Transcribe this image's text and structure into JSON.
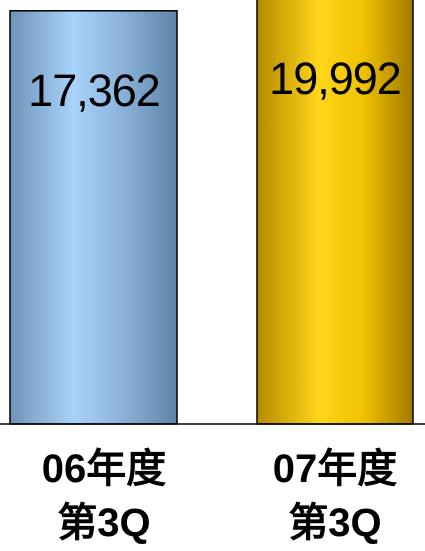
{
  "chart_data": {
    "type": "bar",
    "categories": [
      [
        "06年度",
        "第3Q"
      ],
      [
        "07年度",
        "第3Q"
      ]
    ],
    "values": [
      17362,
      19992
    ],
    "value_labels": [
      "17,362",
      "19,992"
    ],
    "title": "",
    "xlabel": "",
    "ylabel": "",
    "grid": false,
    "legend": "none",
    "colors": [
      "#8fbdea",
      "#e3b400"
    ]
  }
}
